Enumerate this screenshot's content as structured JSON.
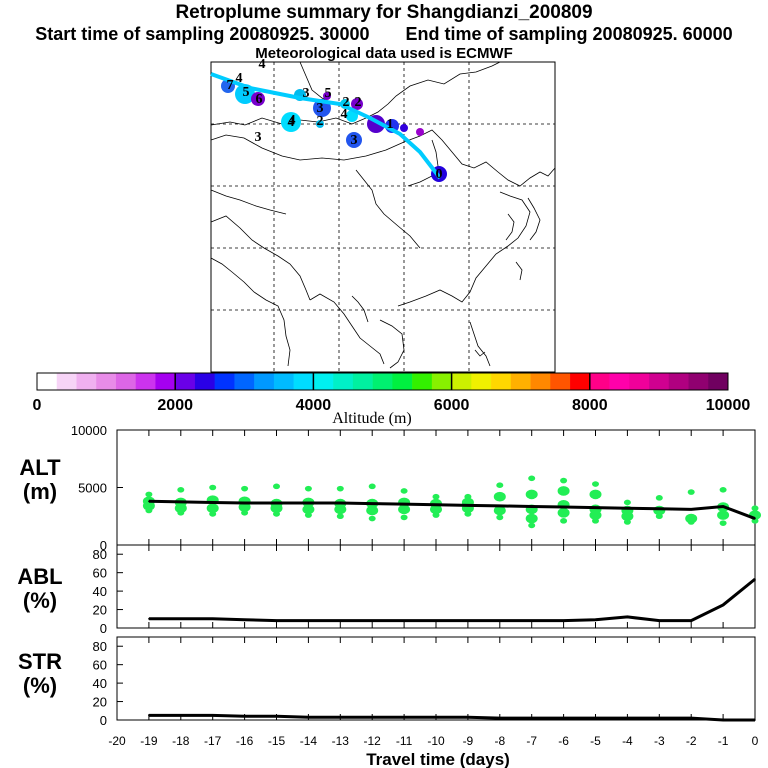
{
  "header": {
    "title": "Retroplume summary for Shangdianzi_200809",
    "start_label": "Start time of sampling",
    "start_value": "20080925. 30000",
    "end_label": "End time of sampling",
    "end_value": "20080925. 60000",
    "met_line": "Meteorological data used is ECMWF"
  },
  "colorbar": {
    "label": "Altitude (m)",
    "ticks": [
      "0",
      "2000",
      "4000",
      "6000",
      "8000",
      "10000"
    ],
    "colors": [
      "#ffffff",
      "#f7d4f7",
      "#f0b0f0",
      "#e88ce8",
      "#dd66e6",
      "#cc33ee",
      "#a500f0",
      "#6a00e8",
      "#2a00e6",
      "#0033ff",
      "#0066ff",
      "#0099ff",
      "#00bbff",
      "#00ddff",
      "#00f0f0",
      "#00f0c8",
      "#00f0a0",
      "#00f070",
      "#00f040",
      "#33f000",
      "#88f000",
      "#ccf000",
      "#f0f000",
      "#ffd700",
      "#ffb000",
      "#ff8800",
      "#ff5500",
      "#ff0000",
      "#ff0088",
      "#ff00aa",
      "#f0009a",
      "#d00090",
      "#b00080",
      "#900070",
      "#700060"
    ]
  },
  "map": {
    "plume_labels": [
      {
        "t": "0",
        "c": "#2200dd"
      },
      {
        "t": "1",
        "c": "#5500cc"
      },
      {
        "t": "2",
        "c": "#8800cc"
      },
      {
        "t": "3",
        "c": "#2255ee"
      },
      {
        "t": "4",
        "c": "#00ccee"
      },
      {
        "t": "5",
        "c": "#00bbee"
      },
      {
        "t": "6",
        "c": "#6600cc"
      },
      {
        "t": "7",
        "c": "#2266ee"
      },
      {
        "t": "3",
        "c": "#00bbee"
      },
      {
        "t": "2",
        "c": "#00ddff"
      },
      {
        "t": "4",
        "c": "#00eeff"
      },
      {
        "t": "5",
        "c": "#9900cc"
      },
      {
        "t": "4",
        "c": "#00ccee"
      },
      {
        "t": "3",
        "c": "#00f0e0"
      },
      {
        "t": "2",
        "c": "#00f0e0"
      },
      {
        "t": "4",
        "c": "#00f0e0"
      },
      {
        "t": "4",
        "c": "#00dde0"
      },
      {
        "t": "3",
        "c": "#00ccdd"
      }
    ]
  },
  "chart_data": [
    {
      "type": "line",
      "name": "ALT",
      "ylabel": "ALT\n(m)",
      "ylabel_line1": "ALT",
      "ylabel_line2": "(m)",
      "xlim": [
        -20,
        0
      ],
      "ylim": [
        0,
        10000
      ],
      "yticks": [
        "0",
        "5000",
        "10000"
      ],
      "x": [
        -19,
        -18,
        -17,
        -16,
        -15,
        -14,
        -13,
        -12,
        -11,
        -10,
        -9,
        -8,
        -7,
        -6,
        -5,
        -4,
        -3,
        -2,
        -1,
        0
      ],
      "values": [
        3800,
        3750,
        3700,
        3650,
        3650,
        3650,
        3650,
        3600,
        3550,
        3500,
        3450,
        3400,
        3350,
        3300,
        3250,
        3200,
        3150,
        3100,
        3350,
        2300
      ],
      "scatter": [
        {
          "x": -19,
          "y": [
            3000,
            3400,
            3800,
            4400
          ]
        },
        {
          "x": -18,
          "y": [
            2800,
            3200,
            3700,
            4800
          ]
        },
        {
          "x": -17,
          "y": [
            2700,
            3200,
            3900,
            5000
          ]
        },
        {
          "x": -16,
          "y": [
            2800,
            3300,
            3800,
            4900
          ]
        },
        {
          "x": -15,
          "y": [
            2700,
            3200,
            3600,
            5100
          ]
        },
        {
          "x": -14,
          "y": [
            2600,
            3100,
            3700,
            4900
          ]
        },
        {
          "x": -13,
          "y": [
            2500,
            3100,
            3600,
            4900
          ]
        },
        {
          "x": -12,
          "y": [
            2300,
            3000,
            3600,
            5100
          ]
        },
        {
          "x": -11,
          "y": [
            2400,
            3100,
            3700,
            4700
          ]
        },
        {
          "x": -10,
          "y": [
            2600,
            3100,
            3600,
            4200
          ]
        },
        {
          "x": -9,
          "y": [
            2700,
            3200,
            3700,
            4200
          ]
        },
        {
          "x": -8,
          "y": [
            2400,
            3000,
            4200,
            5200
          ]
        },
        {
          "x": -7,
          "y": [
            1700,
            2300,
            3100,
            4400,
            5800
          ]
        },
        {
          "x": -6,
          "y": [
            2100,
            2800,
            3500,
            4700,
            5600
          ]
        },
        {
          "x": -5,
          "y": [
            2100,
            2600,
            3100,
            4400,
            5300
          ]
        },
        {
          "x": -4,
          "y": [
            2000,
            2500,
            3000,
            3700
          ]
        },
        {
          "x": -3,
          "y": [
            2500,
            3000,
            4100
          ]
        },
        {
          "x": -2,
          "y": [
            2000,
            2300,
            4600
          ]
        },
        {
          "x": -1,
          "y": [
            1900,
            2600,
            3300,
            4800
          ]
        },
        {
          "x": 0,
          "y": [
            2100,
            2600,
            3200
          ]
        }
      ]
    },
    {
      "type": "line",
      "name": "ABL",
      "ylabel_line1": "ABL",
      "ylabel_line2": "(%)",
      "xlim": [
        -20,
        0
      ],
      "ylim": [
        0,
        90
      ],
      "yticks": [
        "0",
        "20",
        "40",
        "60",
        "80"
      ],
      "x": [
        -19,
        -18,
        -17,
        -16,
        -15,
        -14,
        -13,
        -12,
        -11,
        -10,
        -9,
        -8,
        -7,
        -6,
        -5,
        -4,
        -3,
        -2,
        -1,
        0
      ],
      "values": [
        10,
        10,
        10,
        9,
        8,
        8,
        8,
        8,
        8,
        8,
        8,
        8,
        8,
        8,
        9,
        12,
        8,
        8,
        25,
        53
      ]
    },
    {
      "type": "line",
      "name": "STR",
      "ylabel_line1": "STR",
      "ylabel_line2": "(%)",
      "xlim": [
        -20,
        0
      ],
      "ylim": [
        0,
        90
      ],
      "yticks": [
        "0",
        "20",
        "40",
        "60",
        "80"
      ],
      "xlabel": "Travel time (days)",
      "xticks": [
        "-20",
        "-19",
        "-18",
        "-17",
        "-16",
        "-15",
        "-14",
        "-13",
        "-12",
        "-11",
        "-10",
        "-9",
        "-8",
        "-7",
        "-6",
        "-5",
        "-4",
        "-3",
        "-2",
        "-1",
        "0"
      ],
      "x": [
        -19,
        -18,
        -17,
        -16,
        -15,
        -14,
        -13,
        -12,
        -11,
        -10,
        -9,
        -8,
        -7,
        -6,
        -5,
        -4,
        -3,
        -2,
        -1,
        0
      ],
      "values": [
        5,
        5,
        5,
        4,
        4,
        3,
        3,
        3,
        3,
        3,
        3,
        2,
        2,
        2,
        2,
        2,
        2,
        2,
        0,
        0
      ]
    }
  ]
}
